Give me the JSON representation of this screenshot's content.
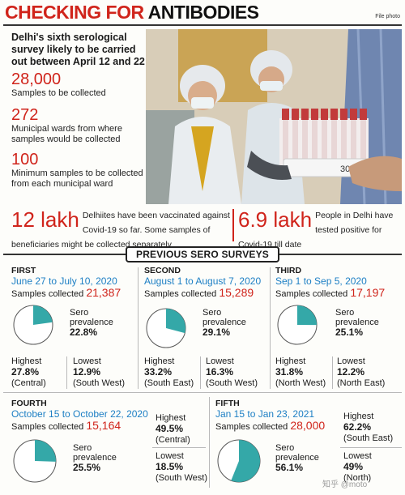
{
  "header": {
    "title_red": "CHECKING FOR",
    "title_black": "ANTIBODIES",
    "credit": "File photo"
  },
  "intro": "Delhi's sixth serological survey likely to be carried out between April 12 and 22",
  "stats": [
    {
      "num": "28,000",
      "label": "Samples to be collected"
    },
    {
      "num": "272",
      "label": "Municipal wards from where samples would be collected"
    },
    {
      "num": "100",
      "label": "Minimum samples to be collected from each municipal ward"
    }
  ],
  "vaccinated": {
    "num": "12 lakh",
    "text": "Delhiites have been vaccinated against Covid-19 so far. Some samples of beneficiaries might be collected separately"
  },
  "tested": {
    "num": "6.9 lakh",
    "text": "People in Delhi have tested positive for Covid-19 till date"
  },
  "prev_title": "PREVIOUS SERO SURVEYS",
  "tube_label": "30",
  "common": {
    "samples_prefix": "Samples collected",
    "sero_label": "Sero prevalence",
    "highest": "Highest",
    "lowest": "Lowest"
  },
  "surveys": [
    {
      "name": "FIRST",
      "dates": "June 27 to July 10, 2020",
      "samples": "21,387",
      "prevalence": "22.8%",
      "highest": "27.8%",
      "highest_region": "(Central)",
      "lowest": "12.9%",
      "lowest_region": "(South West)",
      "fraction": 0.228
    },
    {
      "name": "SECOND",
      "dates": "August 1 to August 7, 2020",
      "samples": "15,289",
      "prevalence": "29.1%",
      "highest": "33.2%",
      "highest_region": "(South East)",
      "lowest": "16.3%",
      "lowest_region": "(South West)",
      "fraction": 0.291
    },
    {
      "name": "THIRD",
      "dates": "Sep 1 to Sep 5, 2020",
      "samples": "17,197",
      "prevalence": "25.1%",
      "highest": "31.8%",
      "highest_region": "(North West)",
      "lowest": "12.2%",
      "lowest_region": "(North East)",
      "fraction": 0.251
    },
    {
      "name": "FOURTH",
      "dates": "October 15 to October 22, 2020",
      "samples": "15,164",
      "prevalence": "25.5%",
      "highest": "49.5%",
      "highest_region": "(Central)",
      "lowest": "18.5%",
      "lowest_region": "(South West)",
      "fraction": 0.255
    },
    {
      "name": "FIFTH",
      "dates": "Jan 15 to Jan 23, 2021",
      "samples": "28,000",
      "prevalence": "56.1%",
      "highest": "62.2%",
      "highest_region": "(South East)",
      "lowest": "49%",
      "lowest_region": "(North)",
      "fraction": 0.561
    }
  ],
  "watermark": "知乎 @moto",
  "colors": {
    "red": "#d0241b",
    "blue": "#1d7fc4",
    "pie_fill": "#34a8a8"
  }
}
